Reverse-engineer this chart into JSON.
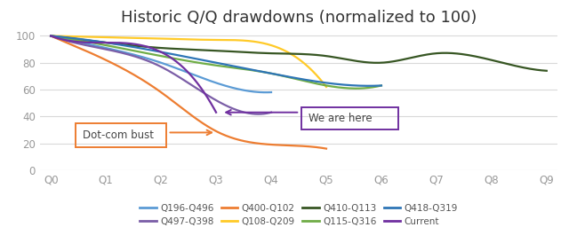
{
  "title": "Historic Q/Q drawdowns (normalized to 100)",
  "x_labels": [
    "Q0",
    "Q1",
    "Q2",
    "Q3",
    "Q4",
    "Q5",
    "Q6",
    "Q7",
    "Q8",
    "Q9"
  ],
  "series": [
    {
      "label": "Q196-Q496",
      "color": "#5B9BD5",
      "data": [
        100,
        91,
        80,
        65,
        58,
        null,
        null,
        null,
        null,
        null
      ]
    },
    {
      "label": "Q497-Q398",
      "color": "#7B5EA7",
      "data": [
        100,
        90,
        77,
        52,
        43,
        null,
        null,
        null,
        null,
        null
      ]
    },
    {
      "label": "Q400-Q102",
      "color": "#ED7D31",
      "data": [
        100,
        82,
        58,
        29,
        19,
        16,
        null,
        null,
        null,
        null
      ]
    },
    {
      "label": "Q108-Q209",
      "color": "#FFCA28",
      "data": [
        100,
        99,
        98,
        97,
        93,
        62,
        null,
        null,
        null,
        null
      ]
    },
    {
      "label": "Q410-Q113",
      "color": "#375623",
      "data": [
        100,
        95,
        91,
        89,
        87,
        85,
        80,
        87,
        82,
        74
      ]
    },
    {
      "label": "Q115-Q316",
      "color": "#70AD47",
      "data": [
        100,
        93,
        85,
        78,
        72,
        63,
        63,
        null,
        null,
        null
      ]
    },
    {
      "label": "Q418-Q319",
      "color": "#2E75B6",
      "data": [
        100,
        95,
        88,
        80,
        72,
        65,
        63,
        null,
        null,
        null
      ]
    },
    {
      "label": "Current",
      "color": "#7030A0",
      "data": [
        100,
        95,
        88,
        43,
        null,
        null,
        null,
        null,
        null,
        null
      ]
    }
  ],
  "ylim": [
    0,
    105
  ],
  "yticks": [
    0,
    20,
    40,
    60,
    80,
    100
  ],
  "annotation_dotcom_text": "Dot-com bust",
  "annotation_dotcom_box_color": "#ED7D31",
  "annotation_here_text": "We are here",
  "annotation_here_box_color": "#7030A0",
  "background_color": "#FFFFFF",
  "grid_color": "#D9D9D9",
  "title_fontsize": 13,
  "legend_fontsize": 7.5,
  "tick_fontsize": 8.5,
  "tick_color": "#999999"
}
